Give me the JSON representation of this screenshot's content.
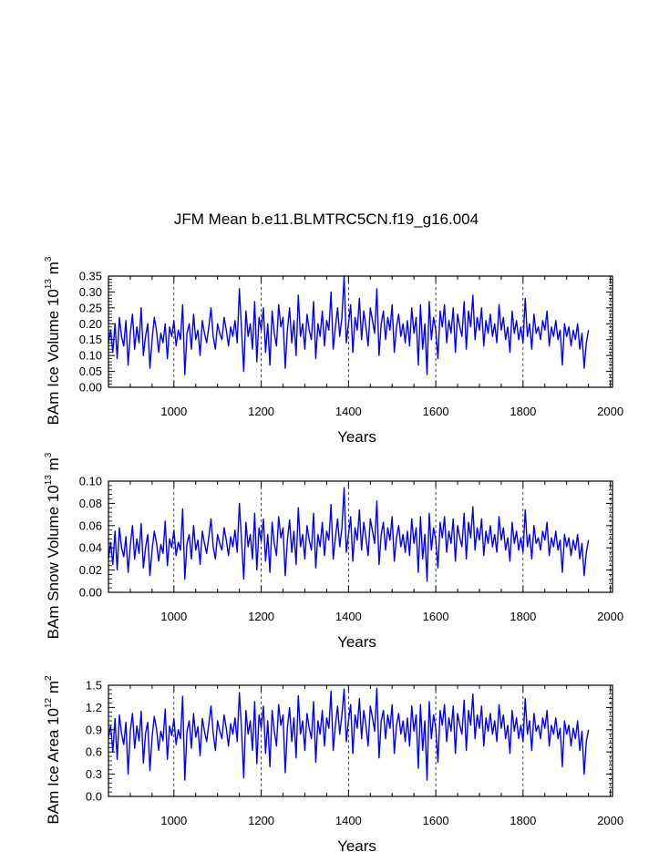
{
  "title": "JFM Mean b.e11.BLMTRC5CN.f19_g16.004",
  "colors": {
    "series": "#0000ff",
    "axis": "#000000",
    "grid": "#000000"
  },
  "chart_data": [
    {
      "type": "line",
      "name": "ice-volume",
      "xlabel": "Years",
      "ylabel_parts": [
        "BAm Ice Volume 10",
        "13",
        " m",
        "3"
      ],
      "xlim": [
        850,
        2005
      ],
      "ylim": [
        0,
        0.35
      ],
      "xticks": [
        1000,
        1200,
        1400,
        1600,
        1800,
        2000
      ],
      "yticks": [
        "0.00",
        "0.05",
        "0.10",
        "0.15",
        "0.20",
        "0.25",
        "0.30",
        "0.35"
      ],
      "series": [
        {
          "name": "Ice Volume",
          "x_start": 850,
          "x_step": 5,
          "values": [
            0.14,
            0.18,
            0.11,
            0.2,
            0.09,
            0.22,
            0.16,
            0.13,
            0.21,
            0.07,
            0.17,
            0.23,
            0.12,
            0.19,
            0.14,
            0.25,
            0.1,
            0.16,
            0.2,
            0.06,
            0.15,
            0.22,
            0.18,
            0.11,
            0.17,
            0.14,
            0.2,
            0.09,
            0.19,
            0.16,
            0.21,
            0.13,
            0.18,
            0.15,
            0.26,
            0.04,
            0.17,
            0.2,
            0.12,
            0.23,
            0.15,
            0.18,
            0.1,
            0.21,
            0.17,
            0.14,
            0.19,
            0.25,
            0.16,
            0.12,
            0.2,
            0.17,
            0.15,
            0.22,
            0.18,
            0.13,
            0.19,
            0.16,
            0.21,
            0.14,
            0.31,
            0.18,
            0.05,
            0.24,
            0.16,
            0.2,
            0.12,
            0.27,
            0.08,
            0.22,
            0.18,
            0.25,
            0.11,
            0.2,
            0.07,
            0.24,
            0.17,
            0.13,
            0.26,
            0.19,
            0.22,
            0.06,
            0.18,
            0.25,
            0.14,
            0.21,
            0.1,
            0.29,
            0.16,
            0.2,
            0.12,
            0.23,
            0.18,
            0.15,
            0.27,
            0.09,
            0.2,
            0.16,
            0.24,
            0.13,
            0.21,
            0.18,
            0.3,
            0.12,
            0.19,
            0.25,
            0.16,
            0.22,
            0.35,
            0.14,
            0.2,
            0.26,
            0.11,
            0.22,
            0.18,
            0.28,
            0.15,
            0.24,
            0.19,
            0.13,
            0.25,
            0.21,
            0.17,
            0.31,
            0.1,
            0.2,
            0.24,
            0.15,
            0.22,
            0.18,
            0.26,
            0.11,
            0.19,
            0.23,
            0.16,
            0.2,
            0.14,
            0.21,
            0.13,
            0.25,
            0.17,
            0.22,
            0.07,
            0.26,
            0.12,
            0.2,
            0.04,
            0.27,
            0.15,
            0.22,
            0.18,
            0.09,
            0.24,
            0.19,
            0.26,
            0.14,
            0.21,
            0.17,
            0.25,
            0.11,
            0.23,
            0.19,
            0.16,
            0.27,
            0.12,
            0.24,
            0.19,
            0.29,
            0.15,
            0.22,
            0.18,
            0.25,
            0.13,
            0.21,
            0.17,
            0.23,
            0.16,
            0.2,
            0.14,
            0.26,
            0.18,
            0.22,
            0.15,
            0.19,
            0.11,
            0.24,
            0.17,
            0.21,
            0.15,
            0.19,
            0.14,
            0.28,
            0.16,
            0.2,
            0.12,
            0.23,
            0.17,
            0.19,
            0.15,
            0.21,
            0.18,
            0.24,
            0.13,
            0.19,
            0.16,
            0.21,
            0.15,
            0.18,
            0.07,
            0.2,
            0.16,
            0.19,
            0.13,
            0.18,
            0.15,
            0.2,
            0.12,
            0.17,
            0.06,
            0.14,
            0.18
          ]
        }
      ]
    },
    {
      "type": "line",
      "name": "snow-volume",
      "xlabel": "Years",
      "ylabel_parts": [
        "BAm Snow Volume 10",
        "13",
        " m",
        "3"
      ],
      "xlim": [
        850,
        2005
      ],
      "ylim": [
        0,
        0.1
      ],
      "xticks": [
        1000,
        1200,
        1400,
        1600,
        1800,
        2000
      ],
      "yticks": [
        "0.00",
        "0.02",
        "0.04",
        "0.06",
        "0.08",
        "0.10"
      ],
      "series": [
        {
          "name": "Snow Volume",
          "x_start": 850,
          "x_step": 5,
          "values": [
            0.03,
            0.045,
            0.025,
            0.055,
            0.02,
            0.058,
            0.04,
            0.032,
            0.05,
            0.018,
            0.042,
            0.06,
            0.03,
            0.048,
            0.035,
            0.062,
            0.022,
            0.04,
            0.052,
            0.015,
            0.038,
            0.055,
            0.045,
            0.028,
            0.043,
            0.035,
            0.064,
            0.024,
            0.048,
            0.04,
            0.056,
            0.033,
            0.045,
            0.038,
            0.075,
            0.012,
            0.044,
            0.052,
            0.03,
            0.06,
            0.038,
            0.047,
            0.025,
            0.055,
            0.044,
            0.035,
            0.05,
            0.066,
            0.041,
            0.03,
            0.052,
            0.044,
            0.038,
            0.058,
            0.047,
            0.033,
            0.05,
            0.041,
            0.056,
            0.036,
            0.08,
            0.046,
            0.012,
            0.063,
            0.041,
            0.052,
            0.03,
            0.071,
            0.02,
            0.058,
            0.046,
            0.066,
            0.028,
            0.052,
            0.018,
            0.063,
            0.044,
            0.033,
            0.068,
            0.049,
            0.058,
            0.015,
            0.047,
            0.065,
            0.036,
            0.055,
            0.025,
            0.076,
            0.041,
            0.052,
            0.03,
            0.06,
            0.047,
            0.038,
            0.071,
            0.022,
            0.052,
            0.041,
            0.063,
            0.033,
            0.055,
            0.047,
            0.079,
            0.03,
            0.049,
            0.066,
            0.041,
            0.058,
            0.094,
            0.036,
            0.052,
            0.068,
            0.028,
            0.058,
            0.047,
            0.074,
            0.038,
            0.063,
            0.049,
            0.033,
            0.066,
            0.055,
            0.044,
            0.082,
            0.025,
            0.052,
            0.063,
            0.038,
            0.058,
            0.047,
            0.068,
            0.028,
            0.049,
            0.06,
            0.041,
            0.052,
            0.036,
            0.055,
            0.033,
            0.066,
            0.044,
            0.058,
            0.018,
            0.068,
            0.03,
            0.052,
            0.01,
            0.071,
            0.038,
            0.058,
            0.047,
            0.022,
            0.063,
            0.049,
            0.068,
            0.036,
            0.055,
            0.044,
            0.066,
            0.028,
            0.06,
            0.049,
            0.041,
            0.071,
            0.03,
            0.063,
            0.049,
            0.077,
            0.038,
            0.058,
            0.047,
            0.066,
            0.033,
            0.055,
            0.044,
            0.06,
            0.041,
            0.052,
            0.036,
            0.068,
            0.047,
            0.058,
            0.038,
            0.049,
            0.028,
            0.063,
            0.044,
            0.055,
            0.038,
            0.049,
            0.036,
            0.074,
            0.041,
            0.052,
            0.03,
            0.06,
            0.044,
            0.049,
            0.038,
            0.055,
            0.047,
            0.063,
            0.033,
            0.049,
            0.041,
            0.055,
            0.038,
            0.047,
            0.018,
            0.052,
            0.041,
            0.049,
            0.033,
            0.047,
            0.038,
            0.052,
            0.03,
            0.044,
            0.015,
            0.036,
            0.047
          ]
        }
      ]
    },
    {
      "type": "line",
      "name": "ice-area",
      "xlabel": "Years",
      "ylabel_parts": [
        "BAm Ice Area 10",
        "12",
        " m",
        "2"
      ],
      "xlim": [
        850,
        2005
      ],
      "ylim": [
        0,
        1.5
      ],
      "xticks": [
        1000,
        1200,
        1400,
        1600,
        1800,
        2000
      ],
      "yticks": [
        "0.0",
        "0.3",
        "0.6",
        "0.9",
        "1.2",
        "1.5"
      ],
      "series": [
        {
          "name": "Ice Area",
          "x_start": 850,
          "x_step": 5,
          "values": [
            0.8,
            0.95,
            0.6,
            1.05,
            0.5,
            1.1,
            0.85,
            0.7,
            1.0,
            0.3,
            0.88,
            1.12,
            0.65,
            0.95,
            0.75,
            1.15,
            0.45,
            0.85,
            1.0,
            0.35,
            0.8,
            1.08,
            0.92,
            0.62,
            0.88,
            0.75,
            1.18,
            0.5,
            0.95,
            0.82,
            1.05,
            0.7,
            0.9,
            0.78,
            1.35,
            0.22,
            0.88,
            1.02,
            0.65,
            1.12,
            0.8,
            0.94,
            0.55,
            1.05,
            0.88,
            0.74,
            0.98,
            1.22,
            0.85,
            0.62,
            1.02,
            0.88,
            0.78,
            1.1,
            0.92,
            0.68,
            0.98,
            0.84,
            1.06,
            0.74,
            1.4,
            0.9,
            0.25,
            1.16,
            0.84,
            1.02,
            0.62,
            1.28,
            0.44,
            1.1,
            0.92,
            1.22,
            0.58,
            1.02,
            0.4,
            1.16,
            0.88,
            0.68,
            1.24,
            0.96,
            1.1,
            0.32,
            0.92,
            1.2,
            0.74,
            1.06,
            0.52,
            1.36,
            0.84,
            1.02,
            0.62,
            1.12,
            0.92,
            0.78,
            1.28,
            0.46,
            1.02,
            0.84,
            1.16,
            0.68,
            1.06,
            0.92,
            1.42,
            0.62,
            0.96,
            1.22,
            0.84,
            1.1,
            1.45,
            0.74,
            1.02,
            1.24,
            0.58,
            1.1,
            0.92,
            1.32,
            0.78,
            1.16,
            0.96,
            0.68,
            1.22,
            1.06,
            0.88,
            1.46,
            0.52,
            1.02,
            1.16,
            0.78,
            1.1,
            0.92,
            1.24,
            0.58,
            0.96,
            1.12,
            0.84,
            1.02,
            0.74,
            1.06,
            0.68,
            1.22,
            0.88,
            1.1,
            0.38,
            1.24,
            0.62,
            1.02,
            0.22,
            1.28,
            0.78,
            1.1,
            0.92,
            0.46,
            1.16,
            0.96,
            1.24,
            0.74,
            1.06,
            0.88,
            1.22,
            0.58,
            1.12,
            0.96,
            0.84,
            1.3,
            0.62,
            1.16,
            0.96,
            1.38,
            0.78,
            1.1,
            0.92,
            1.22,
            0.68,
            1.06,
            0.88,
            1.12,
            0.84,
            1.02,
            0.74,
            1.24,
            0.92,
            1.1,
            0.78,
            0.96,
            0.58,
            1.16,
            0.88,
            1.06,
            0.78,
            0.96,
            0.74,
            1.32,
            0.84,
            1.02,
            0.62,
            1.12,
            0.88,
            0.96,
            0.78,
            1.06,
            0.92,
            1.16,
            0.68,
            0.96,
            0.84,
            1.06,
            0.78,
            0.92,
            0.4,
            1.02,
            0.84,
            0.96,
            0.68,
            0.92,
            0.78,
            1.02,
            0.62,
            0.88,
            0.3,
            0.74,
            0.9
          ]
        }
      ]
    }
  ]
}
